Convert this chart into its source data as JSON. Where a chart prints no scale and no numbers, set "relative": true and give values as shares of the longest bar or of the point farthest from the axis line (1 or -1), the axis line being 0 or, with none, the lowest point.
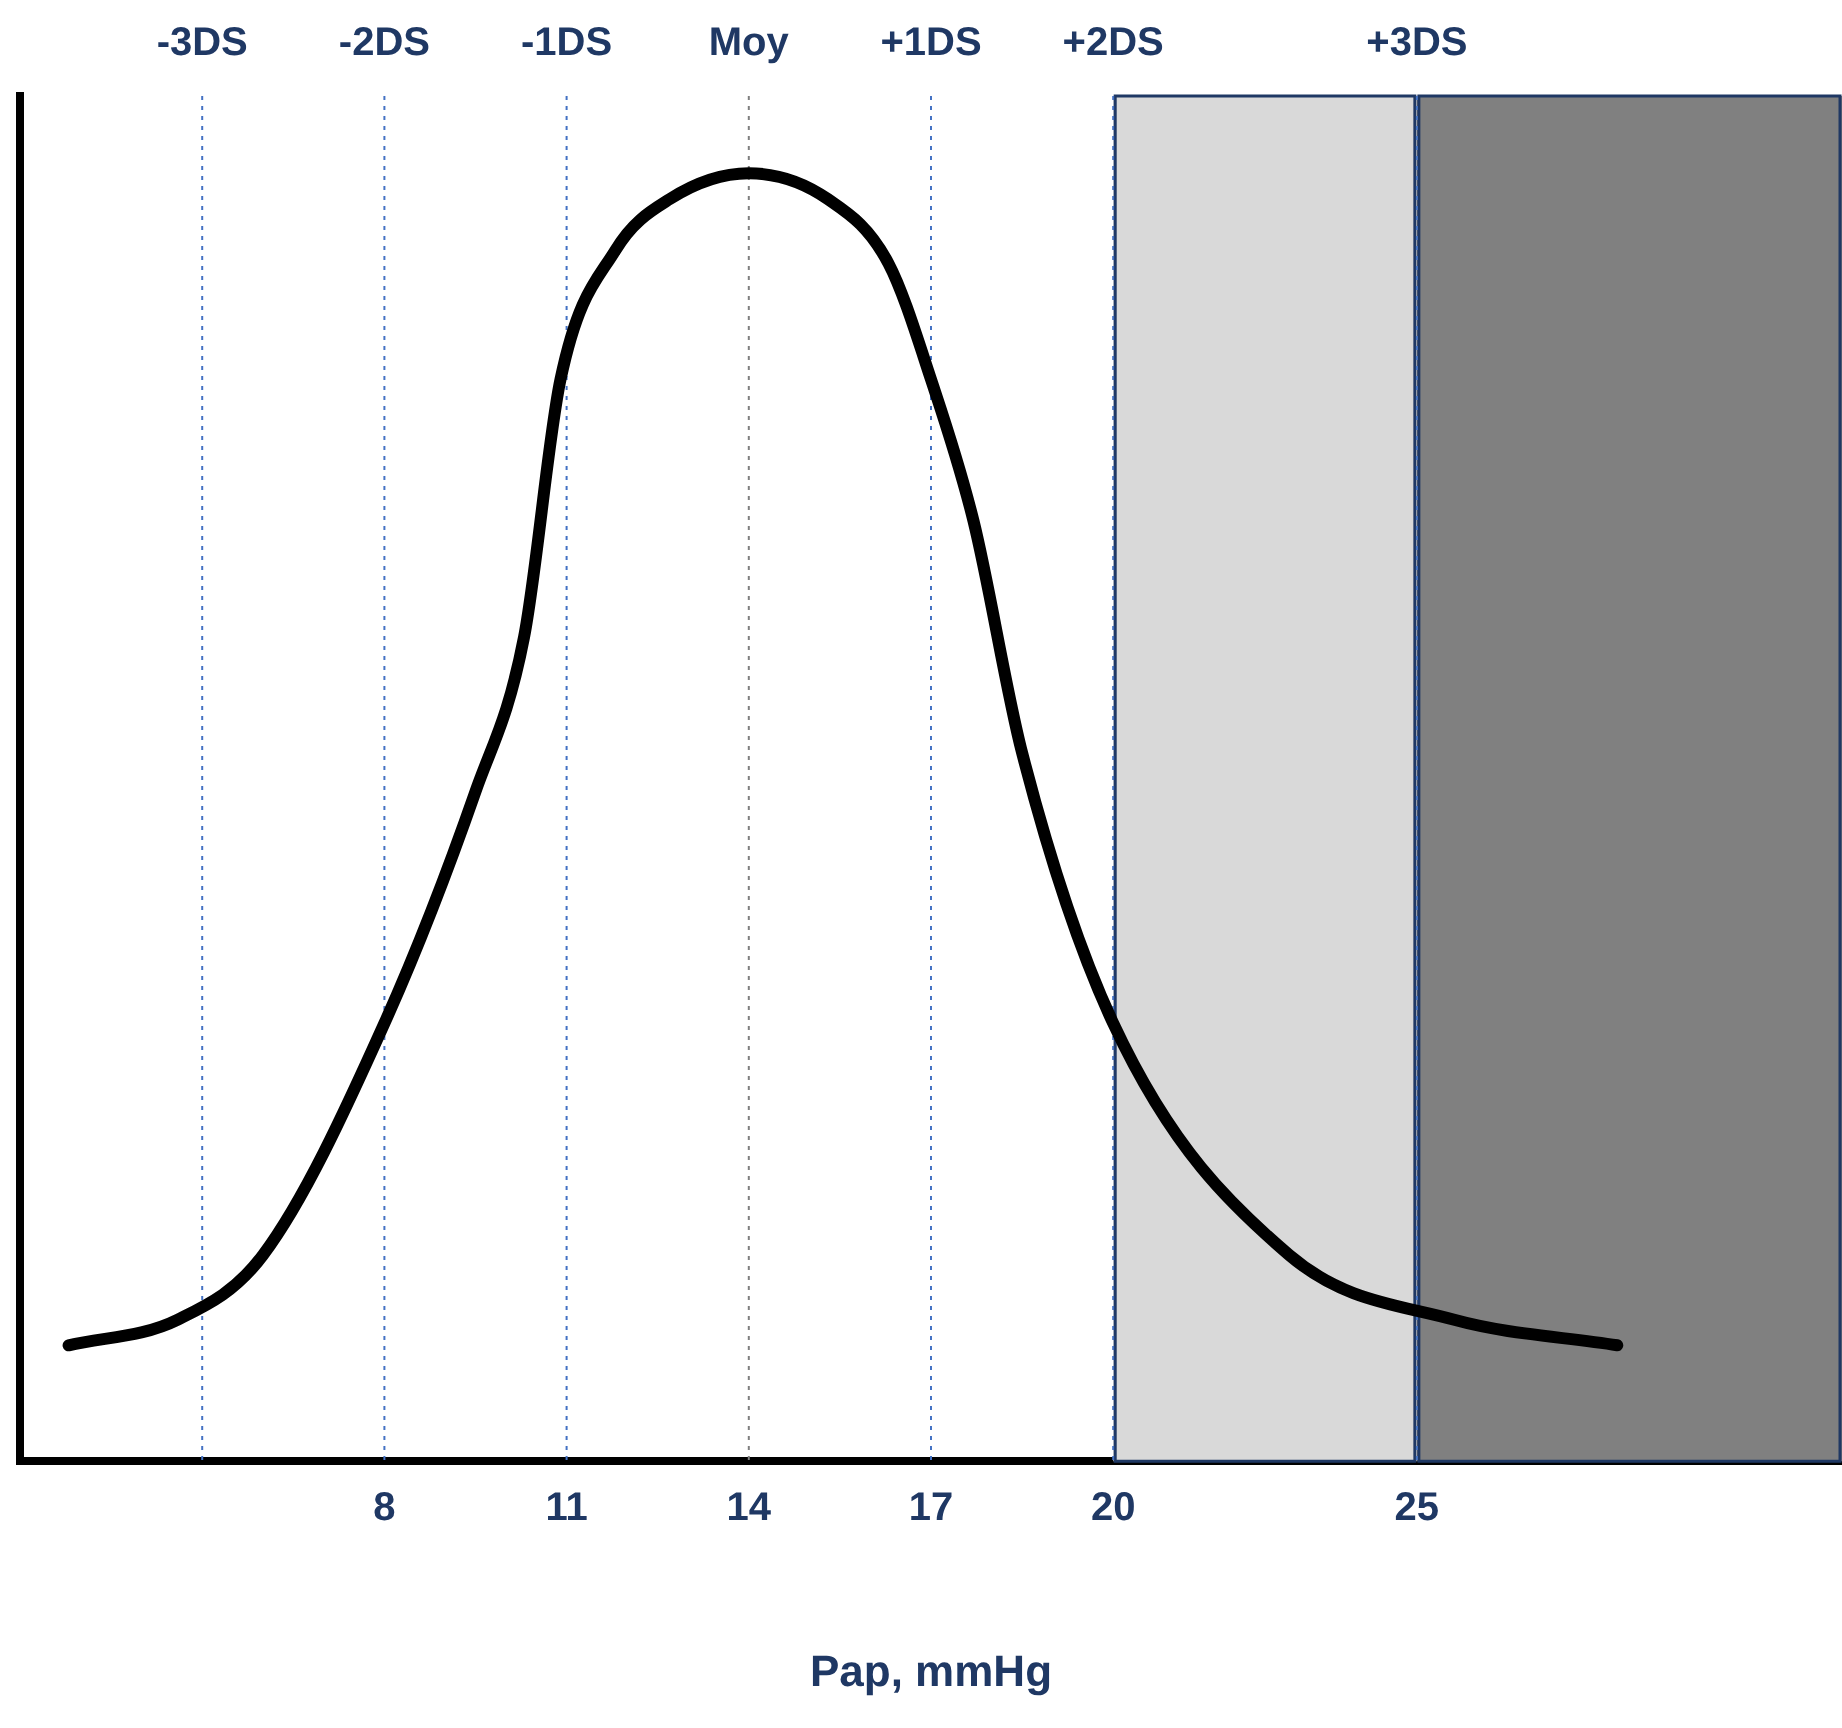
{
  "chart_data": {
    "type": "line",
    "relative": true,
    "xlabel": "Pap, mmHg",
    "x": [
      2.8,
      4.6,
      6,
      8,
      9.5,
      10.3,
      10.9,
      11.8,
      12.7,
      14,
      15.3,
      16.3,
      17,
      17.7,
      18.5,
      20,
      22.9,
      25.6,
      28.3
    ],
    "series": [
      {
        "color": "#000000",
        "values": [
          0.09,
          0.11,
          0.16,
          0.34,
          0.52,
          0.64,
          0.84,
          0.94,
          0.98,
          1,
          0.98,
          0.93,
          0.84,
          0.73,
          0.55,
          0.34,
          0.16,
          0.11,
          0.09
        ]
      }
    ],
    "xlim": [
      2,
      32
    ],
    "xticks": [
      8,
      11,
      14,
      17,
      20,
      25
    ],
    "ref_lines": [
      {
        "axis": "x",
        "value": 5,
        "label": "-3DS",
        "color": "#4472c4",
        "line_style": "dotted"
      },
      {
        "axis": "x",
        "value": 8,
        "label": "-2DS",
        "color": "#4472c4",
        "line_style": "dotted"
      },
      {
        "axis": "x",
        "value": 11,
        "label": "-1DS",
        "color": "#4472c4",
        "line_style": "dotted"
      },
      {
        "axis": "x",
        "value": 14,
        "label": "Moy",
        "color": "#7f7f7f",
        "line_style": "dotted"
      },
      {
        "axis": "x",
        "value": 17,
        "label": "+1DS",
        "color": "#4472c4",
        "line_style": "dotted"
      },
      {
        "axis": "x",
        "value": 20,
        "label": "+2DS",
        "color": "#4472c4",
        "line_style": "dotted"
      },
      {
        "axis": "x",
        "value": 25,
        "label": "+3DS",
        "color": "#4472c4",
        "line_style": "dotted"
      }
    ],
    "bands": [
      {
        "axis": "x",
        "from": 20,
        "to": 25,
        "color": "#d9d9d9"
      },
      {
        "axis": "x",
        "from": 25,
        "to": 32,
        "color": "#808080"
      }
    ],
    "grid": false,
    "legend": false,
    "marker": "none",
    "line_style": "solid"
  }
}
